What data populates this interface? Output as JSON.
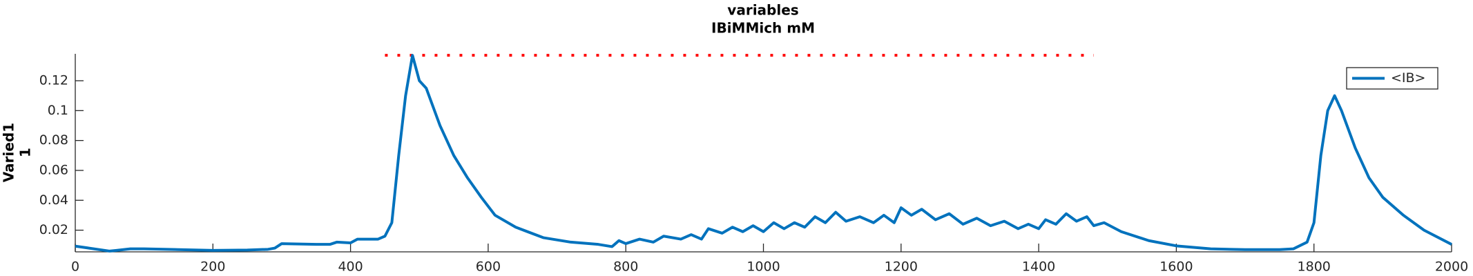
{
  "chart_data": {
    "type": "line",
    "title": [
      "variables",
      "IBiMMich mM"
    ],
    "ylabel": [
      "Varied1",
      "1"
    ],
    "x": [
      0,
      20,
      50,
      60,
      80,
      100,
      150,
      200,
      250,
      280,
      290,
      300,
      350,
      370,
      380,
      400,
      410,
      440,
      450,
      460,
      470,
      480,
      490,
      500,
      510,
      530,
      550,
      570,
      590,
      610,
      640,
      680,
      720,
      760,
      780,
      790,
      800,
      820,
      840,
      855,
      880,
      895,
      910,
      920,
      940,
      955,
      970,
      985,
      1000,
      1015,
      1030,
      1045,
      1060,
      1075,
      1090,
      1105,
      1120,
      1140,
      1160,
      1175,
      1190,
      1200,
      1215,
      1230,
      1250,
      1270,
      1290,
      1310,
      1330,
      1350,
      1370,
      1385,
      1400,
      1410,
      1425,
      1440,
      1455,
      1470,
      1480,
      1495,
      1520,
      1560,
      1600,
      1650,
      1700,
      1750,
      1770,
      1790,
      1800,
      1810,
      1820,
      1830,
      1840,
      1860,
      1880,
      1900,
      1930,
      1960,
      2000
    ],
    "series": [
      {
        "name": "<IB>",
        "color": "#0072bd",
        "values": [
          0.0093,
          0.008,
          0.006,
          0.0065,
          0.0075,
          0.0075,
          0.007,
          0.0065,
          0.0067,
          0.0072,
          0.008,
          0.011,
          0.0105,
          0.0105,
          0.012,
          0.0115,
          0.014,
          0.014,
          0.016,
          0.025,
          0.07,
          0.11,
          0.137,
          0.12,
          0.115,
          0.09,
          0.07,
          0.055,
          0.042,
          0.03,
          0.022,
          0.015,
          0.012,
          0.0105,
          0.009,
          0.013,
          0.011,
          0.014,
          0.012,
          0.016,
          0.014,
          0.017,
          0.014,
          0.021,
          0.018,
          0.022,
          0.019,
          0.023,
          0.019,
          0.025,
          0.021,
          0.025,
          0.022,
          0.029,
          0.025,
          0.032,
          0.026,
          0.029,
          0.025,
          0.03,
          0.025,
          0.035,
          0.03,
          0.034,
          0.027,
          0.031,
          0.024,
          0.028,
          0.023,
          0.026,
          0.021,
          0.024,
          0.021,
          0.027,
          0.024,
          0.031,
          0.026,
          0.029,
          0.023,
          0.025,
          0.019,
          0.013,
          0.0095,
          0.0075,
          0.007,
          0.007,
          0.0075,
          0.012,
          0.025,
          0.07,
          0.1,
          0.11,
          0.1,
          0.075,
          0.055,
          0.042,
          0.03,
          0.02,
          0.0105
        ]
      }
    ],
    "marker_line": {
      "x": [
        450,
        1480
      ],
      "y": [
        0.137,
        0.137
      ],
      "color": "#ff0000"
    },
    "xlim": [
      0,
      2000
    ],
    "xticks": [
      0,
      200,
      400,
      600,
      800,
      1000,
      1200,
      1400,
      1600,
      1800,
      2000
    ],
    "ylim": [
      0.0055,
      0.138
    ],
    "yticks": [
      0.02,
      0.04,
      0.06,
      0.08,
      0.1,
      0.12
    ],
    "legend": "upper right"
  }
}
